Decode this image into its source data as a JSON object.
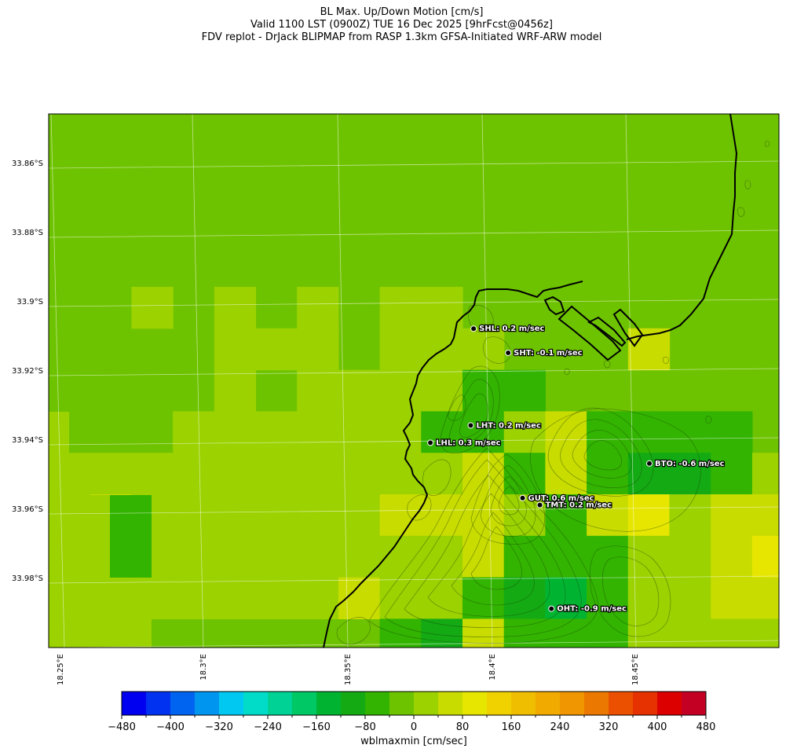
{
  "header": {
    "line1": "BL Max. Up/Down Motion [cm/s]",
    "line2": "Valid 1100 LST (0900Z) TUE 16 Dec 2025 [9hrFcst@0456z]",
    "line3": "FDV replot - DrJack BLIPMAP from RASP 1.3km GFSA-Initiated WRF-ARW model"
  },
  "map": {
    "lat_labels": [
      "33.86°S",
      "33.88°S",
      "33.9°S",
      "33.92°S",
      "33.94°S",
      "33.96°S",
      "33.98°S"
    ],
    "lon_labels": [
      "18.25°E",
      "18.3°E",
      "18.35°E",
      "18.4°E",
      "18.45°E"
    ],
    "stations": [
      {
        "code": "SHL",
        "label": "SHL: 0.2 m/sec",
        "lat": -33.908,
        "lon": 18.392
      },
      {
        "code": "SHT",
        "label": "SHT: -0.1 m/sec",
        "lat": -33.915,
        "lon": 18.404
      },
      {
        "code": "LHT",
        "label": "LHT: 0.2 m/sec",
        "lat": -33.936,
        "lon": 18.391
      },
      {
        "code": "LHL",
        "label": "LHL: 0.3 m/sec",
        "lat": -33.941,
        "lon": 18.377
      },
      {
        "code": "BTO",
        "label": "BTO: -0.6 m/sec",
        "lat": -33.947,
        "lon": 18.453
      },
      {
        "code": "GUT",
        "label": "GUT: 0.6 m/sec",
        "lat": -33.957,
        "lon": 18.409
      },
      {
        "code": "TMT",
        "label": "TMT: 0.2 m/sec",
        "lat": -33.959,
        "lon": 18.415
      },
      {
        "code": "OHT",
        "label": "OHT: -0.9 m/sec",
        "lat": -33.989,
        "lon": 18.419
      }
    ]
  },
  "colorbar": {
    "label": "wblmaxmin [cm/sec]",
    "tick_labels": [
      "−480",
      "−400",
      "−320",
      "−240",
      "−160",
      "−80",
      "0",
      "80",
      "160",
      "240",
      "320",
      "400",
      "480"
    ],
    "colors": [
      "#0000f0",
      "#0032f0",
      "#0064f0",
      "#0096f0",
      "#00c8f0",
      "#00dcc8",
      "#00d296",
      "#00c864",
      "#00b432",
      "#14aa14",
      "#32b400",
      "#6ec300",
      "#9bd200",
      "#c8dc00",
      "#e6e600",
      "#f0d200",
      "#f0be00",
      "#f0aa00",
      "#f09600",
      "#eb7800",
      "#eb5000",
      "#e63200",
      "#dc0000",
      "#c30023"
    ]
  }
}
